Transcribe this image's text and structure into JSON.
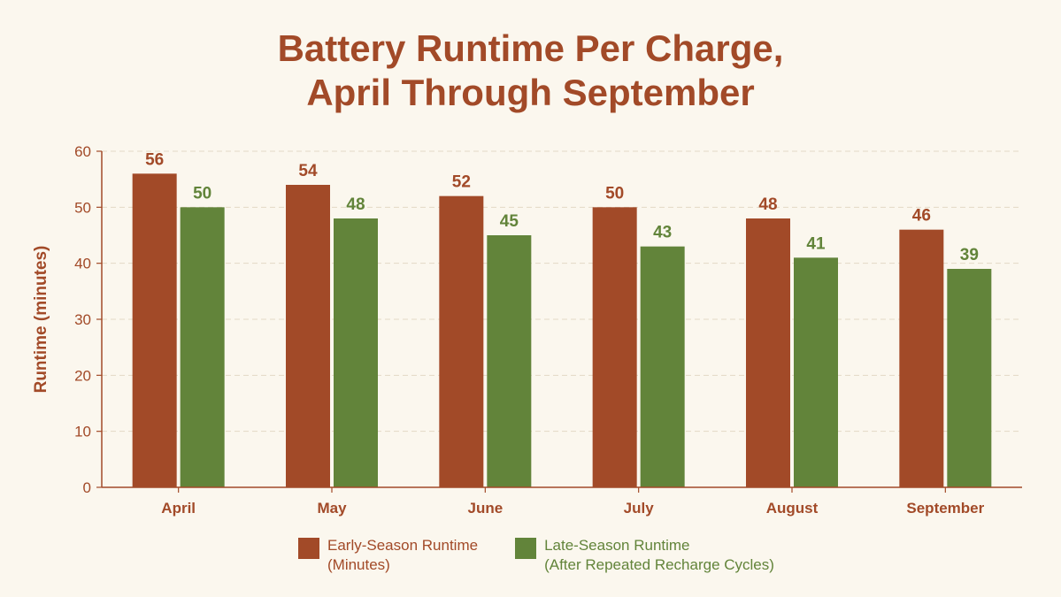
{
  "chart_data": {
    "type": "bar",
    "title_lines": [
      "Battery Runtime Per Charge,",
      "April Through September"
    ],
    "ylabel": "Runtime (minutes)",
    "xlabel": "",
    "ylim": [
      0,
      60
    ],
    "yticks": [
      0,
      10,
      20,
      30,
      40,
      50,
      60
    ],
    "grid": true,
    "legend_position": "bottom-center",
    "categories": [
      "April",
      "May",
      "June",
      "July",
      "August",
      "September"
    ],
    "series": [
      {
        "name": "Early-Season Runtime (Minutes)",
        "name_lines": [
          "Early-Season Runtime",
          "(Minutes)"
        ],
        "values": [
          56,
          54,
          52,
          50,
          48,
          46
        ],
        "color": "#a24a28"
      },
      {
        "name": "Late-Season Runtime (After Repeated Recharge Cycles)",
        "name_lines": [
          "Late-Season Runtime",
          "(After Repeated Recharge Cycles)"
        ],
        "values": [
          50,
          48,
          45,
          43,
          41,
          39
        ],
        "color": "#62843a"
      }
    ]
  },
  "colors": {
    "title": "#a24a28",
    "axis": "#a24a28",
    "grid": "#e3d8c5",
    "background": "#fbf7ee"
  }
}
